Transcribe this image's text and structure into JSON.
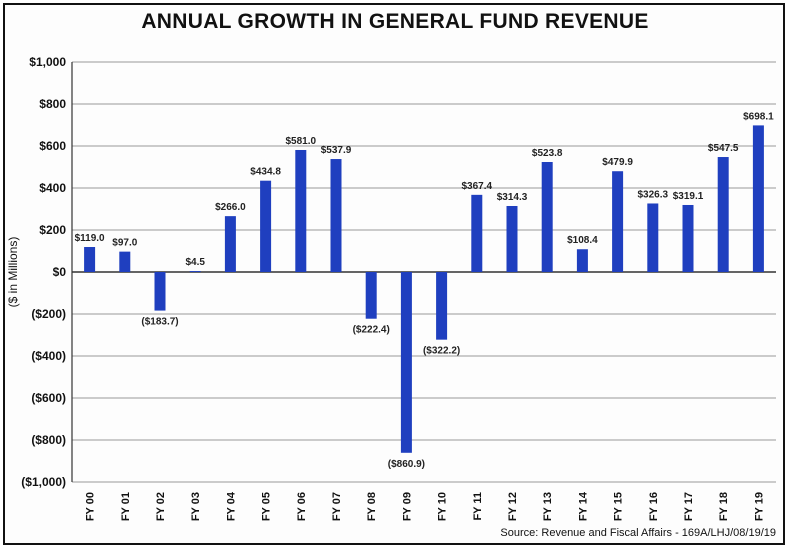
{
  "chart_data": {
    "type": "bar",
    "title": "ANNUAL GROWTH IN GENERAL FUND REVENUE",
    "ylabel": "($ in Millions)",
    "xlabel": "",
    "ylim": [
      -1000,
      1000
    ],
    "yticks": [
      1000,
      800,
      600,
      400,
      200,
      0,
      -200,
      -400,
      -600,
      -800,
      -1000
    ],
    "ytick_labels": [
      "$1,000",
      "$800",
      "$600",
      "$400",
      "$200",
      "$0",
      "($200)",
      "($400)",
      "($600)",
      "($800)",
      "($1,000)"
    ],
    "grid": true,
    "categories": [
      "FY 00",
      "FY 01",
      "FY 02",
      "FY 03",
      "FY 04",
      "FY 05",
      "FY 06",
      "FY 07",
      "FY 08",
      "FY 09",
      "FY 10",
      "FY 11",
      "FY 12",
      "FY 13",
      "FY 14",
      "FY 15",
      "FY 16",
      "FY 17",
      "FY 18",
      "FY 19"
    ],
    "values": [
      119.0,
      97.0,
      -183.7,
      4.5,
      266.0,
      434.8,
      581.0,
      537.9,
      -222.4,
      -860.9,
      -322.2,
      367.4,
      314.3,
      523.8,
      108.4,
      479.9,
      326.3,
      319.1,
      547.5,
      698.1
    ],
    "data_labels": [
      "$119.0",
      "$97.0",
      "($183.7)",
      "$4.5",
      "$266.0",
      "$434.8",
      "$581.0",
      "$537.9",
      "($222.4)",
      "($860.9)",
      "($322.2)",
      "$367.4",
      "$314.3",
      "$523.8",
      "$108.4",
      "$479.9",
      "$326.3",
      "$319.1",
      "$547.5",
      "$698.1"
    ],
    "bar_color": "#1f3fbf",
    "source": "Source: Revenue and Fiscal Affairs - 169A/LHJ/08/19/19"
  }
}
